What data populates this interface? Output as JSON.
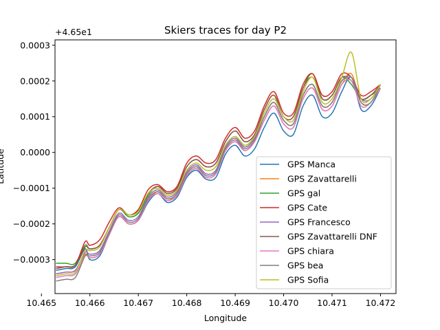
{
  "chart_data": {
    "type": "line",
    "title": "Skiers traces for day P2",
    "xlabel": "Longitude",
    "ylabel": "Latitude",
    "y_offset_label": "+4.65e1",
    "xlim": [
      10.46528,
      10.47232
    ],
    "ylim": [
      -0.000395,
      0.000315
    ],
    "x_ticks": [
      10.465,
      10.466,
      10.467,
      10.468,
      10.469,
      10.47,
      10.471,
      10.472
    ],
    "x_tick_labels": [
      "10.465",
      "10.466",
      "10.467",
      "10.468",
      "10.469",
      "10.470",
      "10.471",
      "10.472"
    ],
    "y_ticks": [
      -0.0003,
      -0.0002,
      -0.0001,
      0,
      0.0001,
      0.0002,
      0.0003
    ],
    "y_tick_labels": [
      "−0.0003",
      "−0.0002",
      "−0.0001",
      "0.0000",
      "0.0001",
      "0.0002",
      "0.0003"
    ],
    "grid": false,
    "legend_position": "lower-right",
    "series": [
      {
        "name": "GPS Manca",
        "color": "#1f77b4",
        "x": [
          10.4653,
          10.4655,
          10.4657,
          10.4659,
          10.466,
          10.4662,
          10.4664,
          10.4666,
          10.4668,
          10.467,
          10.4672,
          10.4674,
          10.4676,
          10.4678,
          10.468,
          10.4682,
          10.4684,
          10.4686,
          10.4688,
          10.469,
          10.4692,
          10.4694,
          10.4696,
          10.4698,
          10.47,
          10.4702,
          10.4704,
          10.4706,
          10.4708,
          10.471,
          10.4712,
          10.4714,
          10.4716,
          10.4718,
          10.472
        ],
        "y": [
          -0.00033,
          -0.000325,
          -0.00032,
          -0.00027,
          -0.0003,
          -0.00029,
          -0.00023,
          -0.00018,
          -0.0002,
          -0.00019,
          -0.00014,
          -0.000115,
          -0.00014,
          -0.000125,
          -7e-05,
          -5e-05,
          -7.5e-05,
          -7e-05,
          -5e-06,
          2e-05,
          -1e-05,
          1e-05,
          7e-05,
          0.00011,
          6e-05,
          5e-05,
          0.00013,
          0.00016,
          0.0001,
          0.00011,
          0.00017,
          0.00021,
          0.00012,
          0.00013,
          0.00018
        ]
      },
      {
        "name": "GPS Zavattarelli",
        "color": "#ff7f0e",
        "x": [
          10.4653,
          10.4655,
          10.4657,
          10.4659,
          10.466,
          10.4662,
          10.4664,
          10.4666,
          10.4668,
          10.467,
          10.4672,
          10.4674,
          10.4676,
          10.4678,
          10.468,
          10.4682,
          10.4684,
          10.4686,
          10.4688,
          10.469,
          10.4692,
          10.4694,
          10.4696,
          10.4698,
          10.47,
          10.4702,
          10.4704,
          10.4706,
          10.4708,
          10.471,
          10.4712,
          10.4714,
          10.4716,
          10.4718,
          10.472
        ],
        "y": [
          -0.00034,
          -0.000335,
          -0.00033,
          -0.000285,
          -0.000295,
          -0.000285,
          -0.00023,
          -0.00018,
          -0.0002,
          -0.00019,
          -0.000135,
          -0.00011,
          -0.00013,
          -0.00012,
          -6.5e-05,
          -4.5e-05,
          -7e-05,
          -6e-05,
          5e-06,
          3e-05,
          5e-06,
          3e-05,
          9e-05,
          0.00013,
          8e-05,
          7e-05,
          0.00015,
          0.00018,
          0.00012,
          0.00013,
          0.00019,
          0.00022,
          0.00014,
          0.00014,
          0.00019
        ]
      },
      {
        "name": "GPS gal",
        "color": "#2ca02c",
        "x": [
          10.4653,
          10.4655,
          10.4657,
          10.4659,
          10.466,
          10.4662,
          10.4664,
          10.4666,
          10.4668,
          10.467,
          10.4672,
          10.4674,
          10.4676,
          10.4678,
          10.468,
          10.4682,
          10.4684,
          10.4686,
          10.4688,
          10.469,
          10.4692,
          10.4694,
          10.4696,
          10.4698,
          10.47,
          10.4702,
          10.4704,
          10.4706,
          10.4708,
          10.471,
          10.4712,
          10.4714,
          10.4716,
          10.4718,
          10.472
        ],
        "y": [
          -0.00031,
          -0.00031,
          -0.00031,
          -0.00026,
          -0.00027,
          -0.00026,
          -0.00021,
          -0.00016,
          -0.00018,
          -0.00017,
          -0.00012,
          -9.5e-05,
          -0.000115,
          -0.0001,
          -4e-05,
          -2e-05,
          -4e-05,
          -3e-05,
          3e-05,
          6e-05,
          3e-05,
          5e-05,
          0.00012,
          0.00016,
          0.0001,
          0.0001,
          0.00018,
          0.00022,
          0.00015,
          0.00016,
          0.00021,
          0.00019,
          0.00015,
          0.00016,
          0.00018
        ]
      },
      {
        "name": "GPS Cate",
        "color": "#d62728",
        "x": [
          10.4653,
          10.4655,
          10.4657,
          10.4659,
          10.466,
          10.4662,
          10.4664,
          10.4666,
          10.4668,
          10.467,
          10.4672,
          10.4674,
          10.4676,
          10.4678,
          10.468,
          10.4682,
          10.4684,
          10.4686,
          10.4688,
          10.469,
          10.4692,
          10.4694,
          10.4696,
          10.4698,
          10.47,
          10.4702,
          10.4704,
          10.4706,
          10.4708,
          10.471,
          10.4712,
          10.4714,
          10.4716,
          10.4718,
          10.472
        ],
        "y": [
          -0.00032,
          -0.00032,
          -0.000315,
          -0.00025,
          -0.00026,
          -0.000245,
          -0.000195,
          -0.000155,
          -0.000175,
          -0.00016,
          -0.000105,
          -9e-05,
          -0.00011,
          -9.5e-05,
          -3e-05,
          -1e-05,
          -3e-05,
          -2e-05,
          4e-05,
          7e-05,
          4e-05,
          6e-05,
          0.00013,
          0.00017,
          0.00011,
          0.00011,
          0.00019,
          0.00022,
          0.00016,
          0.00017,
          0.00022,
          0.00021,
          0.00016,
          0.00017,
          0.00019
        ]
      },
      {
        "name": "GPS Francesco",
        "color": "#9467bd",
        "x": [
          10.4653,
          10.4655,
          10.4657,
          10.4659,
          10.466,
          10.4662,
          10.4664,
          10.4666,
          10.4668,
          10.467,
          10.4672,
          10.4674,
          10.4676,
          10.4678,
          10.468,
          10.4682,
          10.4684,
          10.4686,
          10.4688,
          10.469,
          10.4692,
          10.4694,
          10.4696,
          10.4698,
          10.47,
          10.4702,
          10.4704,
          10.4706,
          10.4708,
          10.471,
          10.4712,
          10.4714,
          10.4716,
          10.4718,
          10.472
        ],
        "y": [
          -0.00034,
          -0.000335,
          -0.00033,
          -0.00028,
          -0.000285,
          -0.000275,
          -0.00022,
          -0.00017,
          -0.00019,
          -0.00018,
          -0.000125,
          -0.000105,
          -0.000125,
          -0.00011,
          -5.5e-05,
          -3.5e-05,
          -6e-05,
          -5e-05,
          1.5e-05,
          4e-05,
          1.5e-05,
          4e-05,
          0.0001,
          0.00014,
          9e-05,
          8e-05,
          0.00016,
          0.00019,
          0.00013,
          0.00014,
          0.0002,
          0.00021,
          0.00015,
          0.00015,
          0.00019
        ]
      },
      {
        "name": "GPS Zavattarelli DNF",
        "color": "#8c564b",
        "x": [
          10.4653,
          10.4655,
          10.4657,
          10.4659,
          10.466,
          10.4662,
          10.4664,
          10.4666,
          10.4668,
          10.467,
          10.4672,
          10.4674,
          10.4676,
          10.4678,
          10.468,
          10.4682,
          10.4684,
          10.4686,
          10.4688,
          10.469,
          10.4692,
          10.4694,
          10.4696,
          10.4698,
          10.47,
          10.4702,
          10.4704,
          10.4706,
          10.4708,
          10.471,
          10.4712,
          10.4714,
          10.4716,
          10.4718,
          10.472
        ],
        "y": [
          -0.000325,
          -0.00032,
          -0.000315,
          -0.000265,
          -0.00027,
          -0.00026,
          -0.00021,
          -0.00016,
          -0.000175,
          -0.000165,
          -0.000115,
          -9.5e-05,
          -0.000115,
          -0.0001,
          -4e-05,
          -2e-05,
          -4e-05,
          -3e-05,
          3e-05,
          6e-05,
          3e-05,
          5e-05,
          0.00012,
          0.00016,
          0.0001,
          0.0001,
          0.00018,
          0.00021,
          0.00015,
          0.00016,
          0.00021,
          0.0002,
          0.00015,
          0.00016,
          0.00019
        ]
      },
      {
        "name": "GPS chiara",
        "color": "#e377c2",
        "x": [
          10.4653,
          10.4655,
          10.4657,
          10.4659,
          10.466,
          10.4662,
          10.4664,
          10.4666,
          10.4668,
          10.467,
          10.4672,
          10.4674,
          10.4676,
          10.4678,
          10.468,
          10.4682,
          10.4684,
          10.4686,
          10.4688,
          10.469,
          10.4692,
          10.4694,
          10.4696,
          10.4698,
          10.47,
          10.4702,
          10.4704,
          10.4706,
          10.4708,
          10.471,
          10.4712,
          10.4714,
          10.4716,
          10.4718,
          10.472
        ],
        "y": [
          -0.00035,
          -0.000345,
          -0.00034,
          -0.00029,
          -0.000295,
          -0.000285,
          -0.00023,
          -0.00018,
          -0.0002,
          -0.00019,
          -0.000135,
          -0.000115,
          -0.000135,
          -0.00012,
          -6.5e-05,
          -4.5e-05,
          -7e-05,
          -6e-05,
          5e-06,
          3e-05,
          5e-06,
          3e-05,
          9e-05,
          0.00013,
          8e-05,
          7e-05,
          0.00015,
          0.00018,
          0.00012,
          0.00013,
          0.00019,
          0.0002,
          0.00013,
          0.00014,
          0.00018
        ]
      },
      {
        "name": "GPS bea",
        "color": "#7f7f7f",
        "x": [
          10.4653,
          10.4655,
          10.4657,
          10.4659,
          10.466,
          10.4662,
          10.4664,
          10.4666,
          10.4668,
          10.467,
          10.4672,
          10.4674,
          10.4676,
          10.4678,
          10.468,
          10.4682,
          10.4684,
          10.4686,
          10.4688,
          10.469,
          10.4692,
          10.4694,
          10.4696,
          10.4698,
          10.47,
          10.4702,
          10.4704,
          10.4706,
          10.4708,
          10.471,
          10.4712,
          10.4714,
          10.4716,
          10.4718,
          10.472
        ],
        "y": [
          -0.00036,
          -0.000355,
          -0.00035,
          -0.00029,
          -0.00029,
          -0.00028,
          -0.000225,
          -0.000175,
          -0.000195,
          -0.000185,
          -0.00013,
          -0.00011,
          -0.00013,
          -0.000115,
          -6e-05,
          -4e-05,
          -6.5e-05,
          -5.5e-05,
          1e-05,
          3.5e-05,
          1e-05,
          3.5e-05,
          0.0001,
          0.00014,
          9e-05,
          8e-05,
          0.00016,
          0.00019,
          0.00013,
          0.00014,
          0.0002,
          0.00021,
          0.00014,
          0.00014,
          0.00019
        ]
      },
      {
        "name": "GPS Sofia",
        "color": "#bcbd22",
        "x": [
          10.4653,
          10.4655,
          10.4657,
          10.4659,
          10.466,
          10.4662,
          10.4664,
          10.4666,
          10.4668,
          10.467,
          10.4672,
          10.4674,
          10.4676,
          10.4678,
          10.468,
          10.4682,
          10.4684,
          10.4686,
          10.4688,
          10.469,
          10.4692,
          10.4694,
          10.4696,
          10.4698,
          10.47,
          10.4702,
          10.4704,
          10.4706,
          10.4708,
          10.471,
          10.4712,
          10.4714,
          10.4716,
          10.4718,
          10.472
        ],
        "y": [
          -0.000345,
          -0.00034,
          -0.000335,
          -0.000275,
          -0.000275,
          -0.000265,
          -0.00021,
          -0.00016,
          -0.000175,
          -0.000165,
          -0.000115,
          -0.0001,
          -0.00012,
          -0.000105,
          -5e-05,
          -3e-05,
          -5e-05,
          -4e-05,
          2e-05,
          4.5e-05,
          2e-05,
          4.5e-05,
          0.00011,
          0.00015,
          0.0001,
          9e-05,
          0.00017,
          0.00021,
          0.00014,
          0.00015,
          0.00021,
          0.00028,
          0.00015,
          0.00015,
          0.00019
        ]
      }
    ]
  }
}
